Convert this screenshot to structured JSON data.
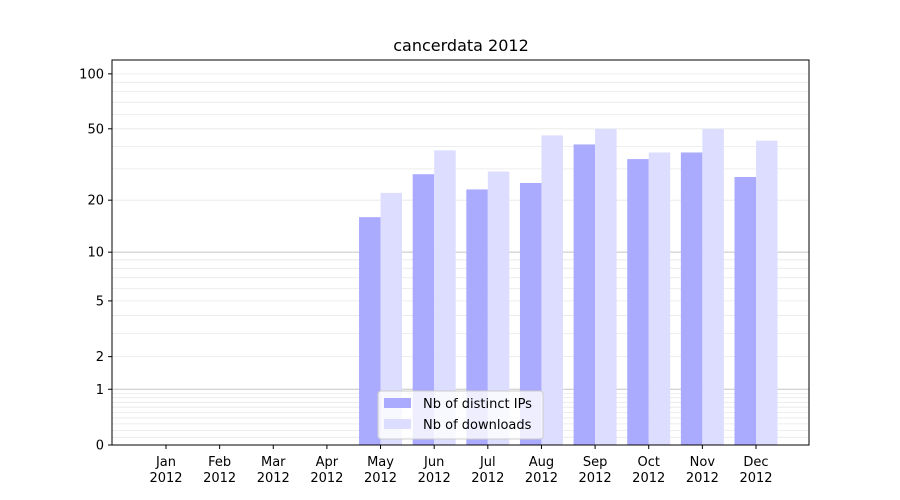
{
  "chart_data": {
    "type": "bar",
    "title": "cancerdata 2012",
    "xlabel": "",
    "ylabel": "",
    "y_scale": "log(1+y)",
    "y_ticks": [
      0,
      1,
      2,
      5,
      10,
      20,
      50,
      100
    ],
    "ylim": [
      0,
      119
    ],
    "categories": [
      {
        "month": "Jan",
        "year": "2012"
      },
      {
        "month": "Feb",
        "year": "2012"
      },
      {
        "month": "Mar",
        "year": "2012"
      },
      {
        "month": "Apr",
        "year": "2012"
      },
      {
        "month": "May",
        "year": "2012"
      },
      {
        "month": "Jun",
        "year": "2012"
      },
      {
        "month": "Jul",
        "year": "2012"
      },
      {
        "month": "Aug",
        "year": "2012"
      },
      {
        "month": "Sep",
        "year": "2012"
      },
      {
        "month": "Oct",
        "year": "2012"
      },
      {
        "month": "Nov",
        "year": "2012"
      },
      {
        "month": "Dec",
        "year": "2012"
      }
    ],
    "series": [
      {
        "name": "Nb of distinct IPs",
        "color": "#aaaaff",
        "values": [
          0,
          0,
          0,
          0,
          16,
          28,
          23,
          25,
          41,
          34,
          37,
          27
        ]
      },
      {
        "name": "Nb of downloads",
        "color": "#ddddff",
        "values": [
          0,
          0,
          0,
          0,
          22,
          38,
          29,
          46,
          50,
          37,
          50,
          43
        ]
      }
    ],
    "grid": true,
    "legend": "lower-center"
  }
}
